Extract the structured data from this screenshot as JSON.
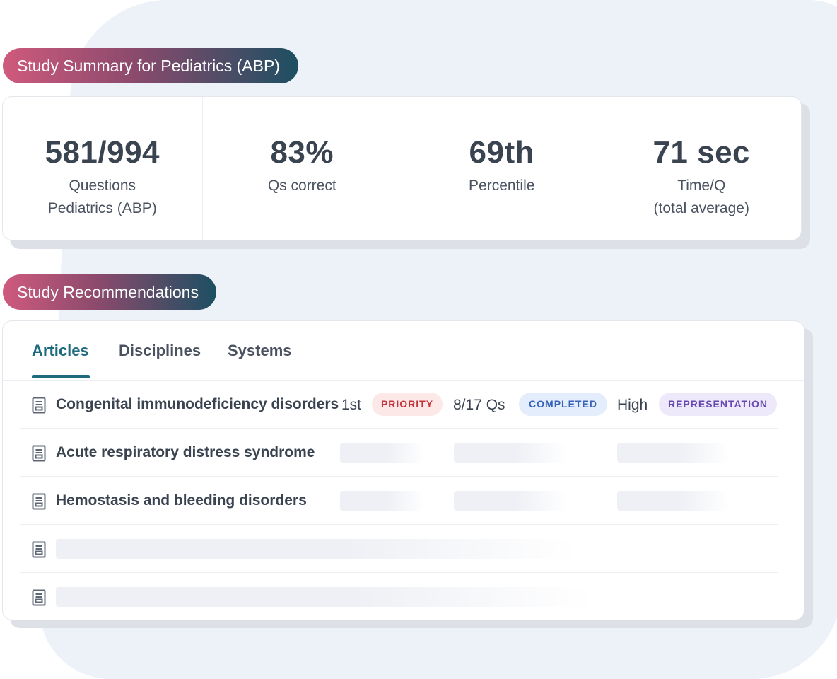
{
  "summary": {
    "pill_label": "Study Summary for Pediatrics (ABP)",
    "stats": [
      {
        "value": "581/994",
        "label_lines": [
          "Questions",
          "Pediatrics (ABP)"
        ]
      },
      {
        "value": "83%",
        "label_lines": [
          "Qs correct"
        ]
      },
      {
        "value": "69th",
        "label_lines": [
          "Percentile"
        ]
      },
      {
        "value": "71 sec",
        "label_lines": [
          "Time/Q",
          "(total average)"
        ]
      }
    ]
  },
  "recommendations": {
    "pill_label": "Study Recommendations",
    "tabs": [
      {
        "label": "Articles",
        "active": true
      },
      {
        "label": "Disciplines",
        "active": false
      },
      {
        "label": "Systems",
        "active": false
      }
    ],
    "rows": [
      {
        "title": "Congenital immunodeficiency disorders",
        "rank": "1st",
        "priority_badge": "PRIORITY",
        "questions": "8/17 Qs",
        "status_badge": "COMPLETED",
        "level": "High",
        "level_badge": "REPRESENTATION",
        "icon": "document-icon"
      },
      {
        "title": "Acute respiratory distress syndrome",
        "icon": "document-icon",
        "loading": true
      },
      {
        "title": "Hemostasis and bleeding disorders",
        "icon": "document-icon",
        "loading": true
      },
      {
        "title": "",
        "icon": "document-icon",
        "loading": true
      },
      {
        "title": "",
        "icon": "document-icon",
        "loading": true
      }
    ]
  },
  "colors": {
    "accent_teal": "#1e6b80",
    "pill_gradient_start": "#cf5a7d",
    "pill_gradient_end": "#1d4f62",
    "priority_text": "#c2353a",
    "completed_text": "#3763b8",
    "representation_text": "#6648b0",
    "background_blob": "#edf1f8"
  }
}
